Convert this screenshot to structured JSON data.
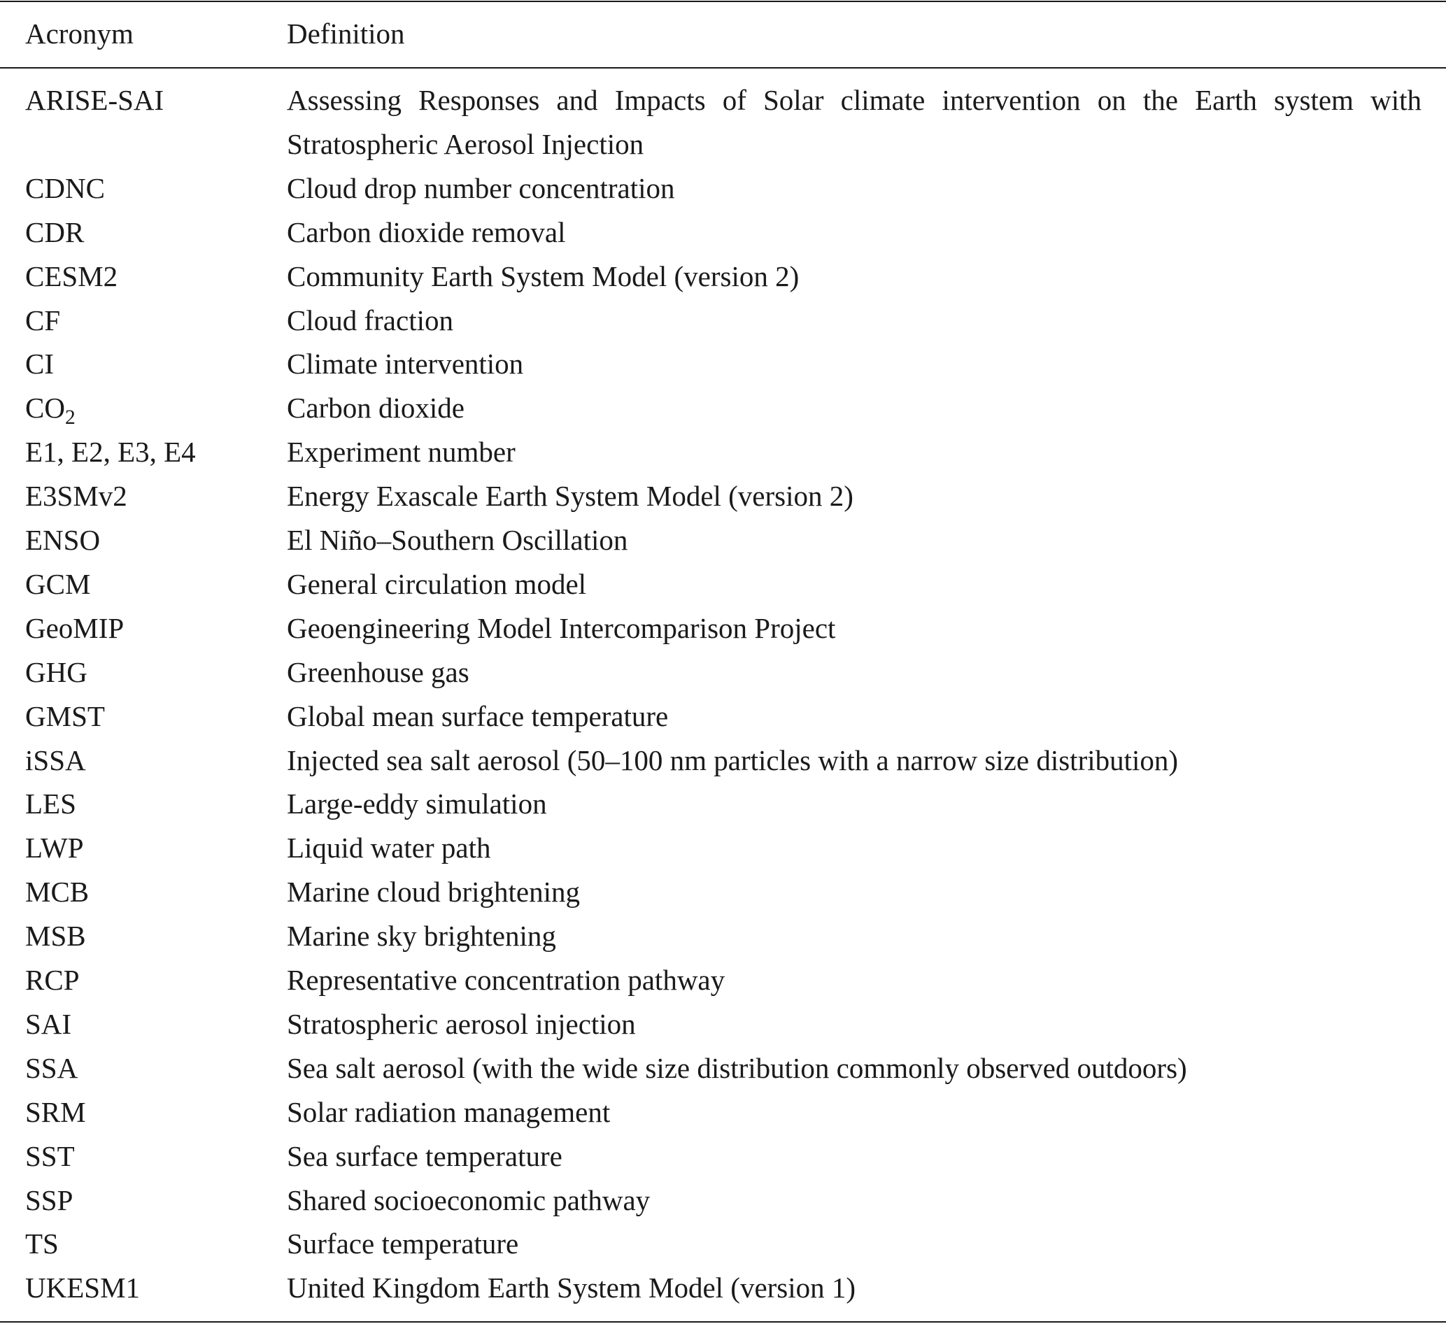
{
  "header": {
    "acronym": "Acronym",
    "definition": "Definition"
  },
  "rows": [
    {
      "acronym": "ARISE-SAI",
      "definition": "Assessing Responses and Impacts of Solar climate intervention on the Earth system with Stratospheric Aerosol Injection"
    },
    {
      "acronym": "CDNC",
      "definition": "Cloud drop number concentration"
    },
    {
      "acronym": "CDR",
      "definition": "Carbon dioxide removal"
    },
    {
      "acronym": "CESM2",
      "definition": "Community Earth System Model (version 2)"
    },
    {
      "acronym": "CF",
      "definition": "Cloud fraction"
    },
    {
      "acronym": "CI",
      "definition": "Climate intervention"
    },
    {
      "acronym": "CO",
      "acronym_sub": "2",
      "definition": "Carbon dioxide"
    },
    {
      "acronym": "E1, E2, E3, E4",
      "definition": "Experiment number"
    },
    {
      "acronym": "E3SMv2",
      "definition": "Energy Exascale Earth System Model (version 2)"
    },
    {
      "acronym": "ENSO",
      "definition": "El Niño–Southern Oscillation"
    },
    {
      "acronym": "GCM",
      "definition": "General circulation model"
    },
    {
      "acronym": "GeoMIP",
      "definition": "Geoengineering Model Intercomparison Project"
    },
    {
      "acronym": "GHG",
      "definition": "Greenhouse gas"
    },
    {
      "acronym": "GMST",
      "definition": "Global mean surface temperature"
    },
    {
      "acronym": "iSSA",
      "definition": "Injected sea salt aerosol (50–100 nm particles with a narrow size distribution)"
    },
    {
      "acronym": "LES",
      "definition": "Large-eddy simulation"
    },
    {
      "acronym": "LWP",
      "definition": "Liquid water path"
    },
    {
      "acronym": "MCB",
      "definition": "Marine cloud brightening"
    },
    {
      "acronym": "MSB",
      "definition": "Marine sky brightening"
    },
    {
      "acronym": "RCP",
      "definition": "Representative concentration pathway"
    },
    {
      "acronym": "SAI",
      "definition": "Stratospheric aerosol injection"
    },
    {
      "acronym": "SSA",
      "definition": "Sea salt aerosol (with the wide size distribution commonly observed outdoors)"
    },
    {
      "acronym": "SRM",
      "definition": "Solar radiation management"
    },
    {
      "acronym": "SST",
      "definition": "Sea surface temperature"
    },
    {
      "acronym": "SSP",
      "definition": "Shared socioeconomic pathway"
    },
    {
      "acronym": "TS",
      "definition": "Surface temperature"
    },
    {
      "acronym": "UKESM1",
      "definition": "United Kingdom Earth System Model (version 1)"
    }
  ]
}
